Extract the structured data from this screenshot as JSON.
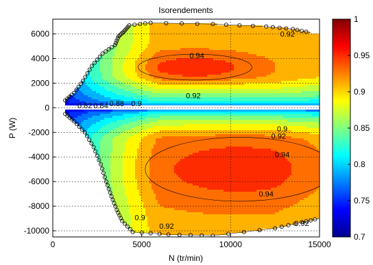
{
  "chart_data": {
    "type": "contourf",
    "title": "Isorendements",
    "xlabel": "N (tr/min)",
    "ylabel": "P (W)",
    "xlim": [
      0,
      15000
    ],
    "ylim": [
      -10500,
      7200
    ],
    "xticks": [
      0,
      5000,
      10000,
      15000
    ],
    "yticks": [
      -10000,
      -8000,
      -6000,
      -4000,
      -2000,
      0,
      2000,
      4000,
      6000
    ],
    "grid": true,
    "colorbar": {
      "min": 0.7,
      "max": 1,
      "ticks": [
        0.7,
        0.75,
        0.8,
        0.85,
        0.9,
        0.95,
        1
      ],
      "colormap": "jet"
    },
    "levels": [
      0.7,
      0.72,
      0.74,
      0.76,
      0.78,
      0.8,
      0.82,
      0.84,
      0.86,
      0.88,
      0.9,
      0.92,
      0.94
    ],
    "motor_region_max_power": [
      [
        700,
        600
      ],
      [
        1200,
        1200
      ],
      [
        1700,
        2200
      ],
      [
        2200,
        3400
      ],
      [
        2800,
        4400
      ],
      [
        3500,
        5100
      ],
      [
        3700,
        5800
      ],
      [
        4000,
        6200
      ],
      [
        4300,
        6700
      ],
      [
        5500,
        6900
      ],
      [
        9000,
        6800
      ],
      [
        12000,
        6600
      ],
      [
        13500,
        6400
      ],
      [
        14500,
        6100
      ]
    ],
    "generator_region_min_power": [
      [
        700,
        -500
      ],
      [
        1200,
        -1100
      ],
      [
        1800,
        -2000
      ],
      [
        2300,
        -3200
      ],
      [
        2700,
        -4600
      ],
      [
        3000,
        -6000
      ],
      [
        3300,
        -7200
      ],
      [
        3600,
        -8300
      ],
      [
        3900,
        -9200
      ],
      [
        4500,
        -10100
      ],
      [
        6500,
        -10300
      ],
      [
        9000,
        -10400
      ],
      [
        12500,
        -9800
      ],
      [
        14000,
        -9300
      ],
      [
        15000,
        -9000
      ]
    ],
    "contour_labels": [
      {
        "text": "0.94",
        "x": 8100,
        "y": 4250
      },
      {
        "text": "0.92",
        "x": 13200,
        "y": 6000
      },
      {
        "text": "0.92",
        "x": 7900,
        "y": 1000
      },
      {
        "text": "0.9",
        "x": 4700,
        "y": 350
      },
      {
        "text": "0.88",
        "x": 3600,
        "y": 350
      },
      {
        "text": "0.84",
        "x": 2700,
        "y": 200
      },
      {
        "text": "0.82",
        "x": 1800,
        "y": 200
      },
      {
        "text": "0.94",
        "x": 12900,
        "y": -3800
      },
      {
        "text": "0.94",
        "x": 12000,
        "y": -7000
      },
      {
        "text": "0.92",
        "x": 12700,
        "y": -2300
      },
      {
        "text": "0.9",
        "x": 12900,
        "y": -1700
      },
      {
        "text": "0.92",
        "x": 6400,
        "y": -9600
      },
      {
        "text": "0.92",
        "x": 14000,
        "y": -9400
      },
      {
        "text": "0.9",
        "x": 4900,
        "y": -8900
      }
    ],
    "high_efficiency_zones": [
      {
        "level": 0.94,
        "center": [
          8000,
          3300
        ],
        "half_width": 3200,
        "half_height": 1050
      },
      {
        "level": 0.94,
        "center": [
          10500,
          -5000
        ],
        "half_width": 5300,
        "half_height": 2600
      }
    ]
  }
}
